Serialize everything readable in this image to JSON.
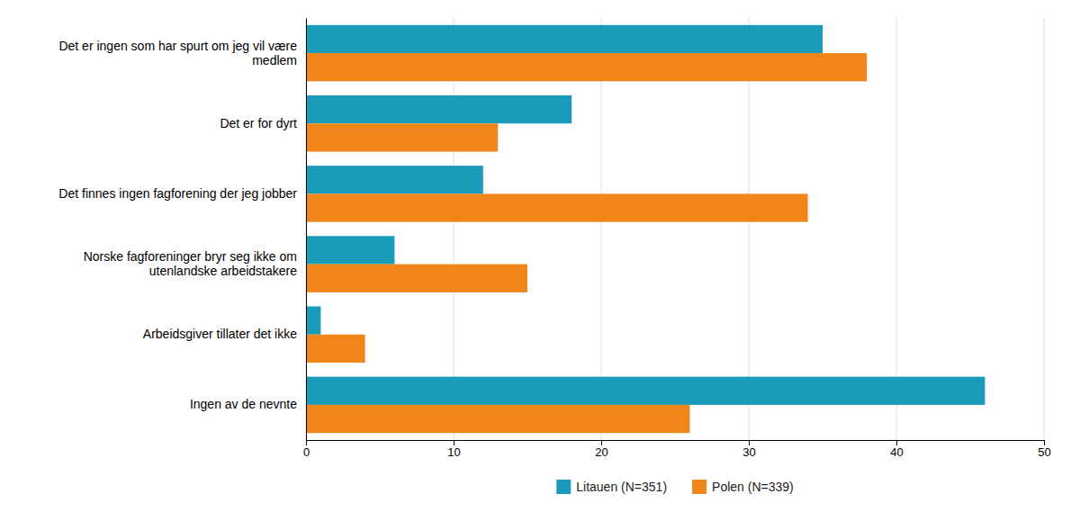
{
  "chart_data": {
    "type": "bar",
    "orientation": "horizontal",
    "categories": [
      "Det er ingen som har spurt om jeg vil være\nmedlem",
      "Det er for dyrt",
      "Det finnes ingen fagforening der jeg jobber",
      "Norske fagforeninger bryr seg ikke om\nutenlandske arbeidstakere",
      "Arbeidsgiver tillater det ikke",
      "Ingen av de nevnte"
    ],
    "series": [
      {
        "name": "Litauen (N=351)",
        "color": "#1a9bba",
        "values": [
          35,
          18,
          12,
          6,
          1,
          46
        ]
      },
      {
        "name": "Polen (N=339)",
        "color": "#f0851a",
        "values": [
          38,
          13,
          34,
          15,
          4,
          26
        ]
      }
    ],
    "xlim": [
      0,
      50
    ],
    "xticks": [
      0,
      10,
      20,
      30,
      40,
      50
    ],
    "grid": true,
    "legend": "bottom"
  }
}
